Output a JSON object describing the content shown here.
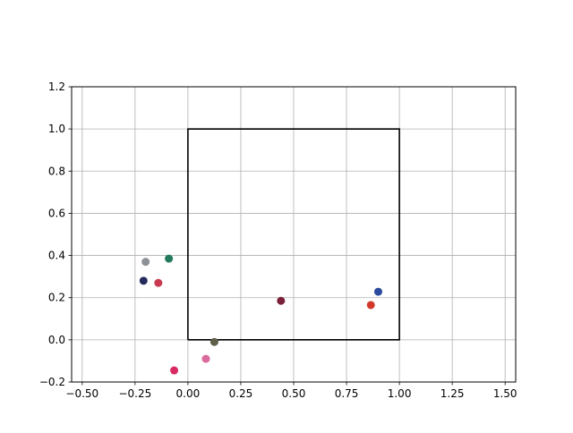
{
  "chart_data": {
    "type": "scatter",
    "title": "",
    "xlabel": "",
    "ylabel": "",
    "xlim": [
      -0.55,
      1.55
    ],
    "ylim": [
      -0.2,
      1.2
    ],
    "x_ticks": [
      -0.5,
      -0.25,
      0.0,
      0.25,
      0.5,
      0.75,
      1.0,
      1.25,
      1.5
    ],
    "x_tick_labels": [
      "−0.50",
      "−0.25",
      "0.00",
      "0.25",
      "0.50",
      "0.75",
      "1.00",
      "1.25",
      "1.50"
    ],
    "y_ticks": [
      -0.2,
      0.0,
      0.2,
      0.4,
      0.6,
      0.8,
      1.0,
      1.2
    ],
    "y_tick_labels": [
      "−0.2",
      "0.0",
      "0.2",
      "0.4",
      "0.6",
      "0.8",
      "1.0",
      "1.2"
    ],
    "grid": true,
    "square": {
      "x": [
        0,
        1,
        1,
        0,
        0
      ],
      "y": [
        0,
        0,
        1,
        1,
        0
      ],
      "color": "#000000"
    },
    "points": [
      {
        "x": -0.2,
        "y": 0.37,
        "color": "#8c9196"
      },
      {
        "x": -0.09,
        "y": 0.385,
        "color": "#237a5d"
      },
      {
        "x": -0.21,
        "y": 0.28,
        "color": "#262b5e"
      },
      {
        "x": -0.14,
        "y": 0.27,
        "color": "#c93a50"
      },
      {
        "x": 0.125,
        "y": -0.01,
        "color": "#5f5e48"
      },
      {
        "x": 0.085,
        "y": -0.09,
        "color": "#d96b9d"
      },
      {
        "x": -0.065,
        "y": -0.145,
        "color": "#d92a63"
      },
      {
        "x": 0.44,
        "y": 0.185,
        "color": "#7a2038"
      },
      {
        "x": 0.9,
        "y": 0.228,
        "color": "#2a4a9c"
      },
      {
        "x": 0.865,
        "y": 0.165,
        "color": "#d3392a"
      }
    ]
  }
}
